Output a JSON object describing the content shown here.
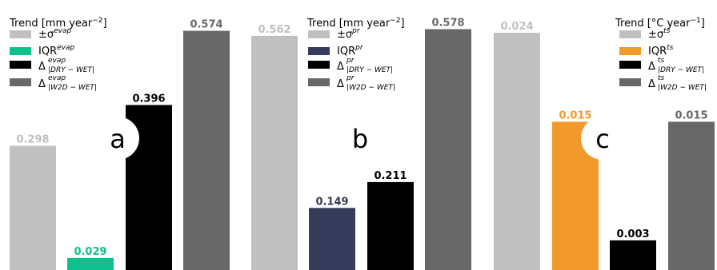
{
  "chart_data": [
    {
      "type": "bar",
      "panel_label": "a",
      "title": "Trend [mm year$^{-2}$]",
      "title_text": [
        "Trend [mm year",
        "−2",
        "]"
      ],
      "categories": [
        "±σ^evap",
        "IQR^evap",
        "Δ^evap_|DRY−WET|",
        "Δ^evap_|W2D−WET|"
      ],
      "values": [
        0.298,
        0.029,
        0.396,
        0.574
      ],
      "value_labels": [
        "0.298",
        "0.029",
        "0.396",
        "0.574"
      ],
      "colors": [
        "#c0c0c0",
        "#10c08c",
        "#000000",
        "#686868"
      ],
      "legend": [
        {
          "main": "±σ",
          "sup": "evap",
          "sub": ""
        },
        {
          "main": "IQR",
          "sup": "evap",
          "sub": ""
        },
        {
          "main": "Δ",
          "sup": "evap",
          "sub": "|DRY − WET|"
        },
        {
          "main": "Δ",
          "sup": "evap",
          "sub": "|W2D − WET|"
        }
      ],
      "ylim": [
        0,
        0.6
      ],
      "legend_position": "top-left"
    },
    {
      "type": "bar",
      "panel_label": "b",
      "title": "Trend [mm year$^{-2}$]",
      "title_text": [
        "Trend [mm year",
        "−2",
        "]"
      ],
      "categories": [
        "±σ^pr",
        "IQR^pr",
        "Δ^pr_|DRY−WET|",
        "Δ^pr_|W2D−WET|"
      ],
      "values": [
        0.562,
        0.149,
        0.211,
        0.578
      ],
      "value_labels": [
        "0.562",
        "0.149",
        "0.211",
        "0.578"
      ],
      "colors": [
        "#c0c0c0",
        "#353b5a",
        "#000000",
        "#686868"
      ],
      "legend": [
        {
          "main": "±σ",
          "sup": "pr",
          "sub": ""
        },
        {
          "main": "IQR",
          "sup": "pr",
          "sub": ""
        },
        {
          "main": "Δ",
          "sup": "pr",
          "sub": "|DRY − WET|"
        },
        {
          "main": "Δ",
          "sup": "pr",
          "sub": "|W2D − WET|"
        }
      ],
      "ylim": [
        0,
        0.6
      ],
      "legend_position": "top-left"
    },
    {
      "type": "bar",
      "panel_label": "c",
      "title": "Trend [°C year$^{-1}$]",
      "title_text": [
        "Trend [°C year",
        "−1",
        "]"
      ],
      "categories": [
        "±σ^ts",
        "IQR^ts",
        "Δ^ts_|DRY−WET|",
        "Δ^ts_|W2D−WET|"
      ],
      "values": [
        0.024,
        0.015,
        0.003,
        0.015
      ],
      "value_labels": [
        "0.024",
        "0.015",
        "0.003",
        "0.015"
      ],
      "colors": [
        "#c0c0c0",
        "#f2992b",
        "#000000",
        "#686868"
      ],
      "legend": [
        {
          "main": "±σ",
          "sup": "ts",
          "sub": ""
        },
        {
          "main": "IQR",
          "sup": "ts",
          "sub": ""
        },
        {
          "main": "Δ",
          "sup": "ts",
          "sub": "|DRY − WET|"
        },
        {
          "main": "Δ",
          "sup": "ts",
          "sub": "|W2D − WET|"
        }
      ],
      "ylim": [
        0,
        0.0253
      ],
      "legend_position": "top-right"
    }
  ]
}
